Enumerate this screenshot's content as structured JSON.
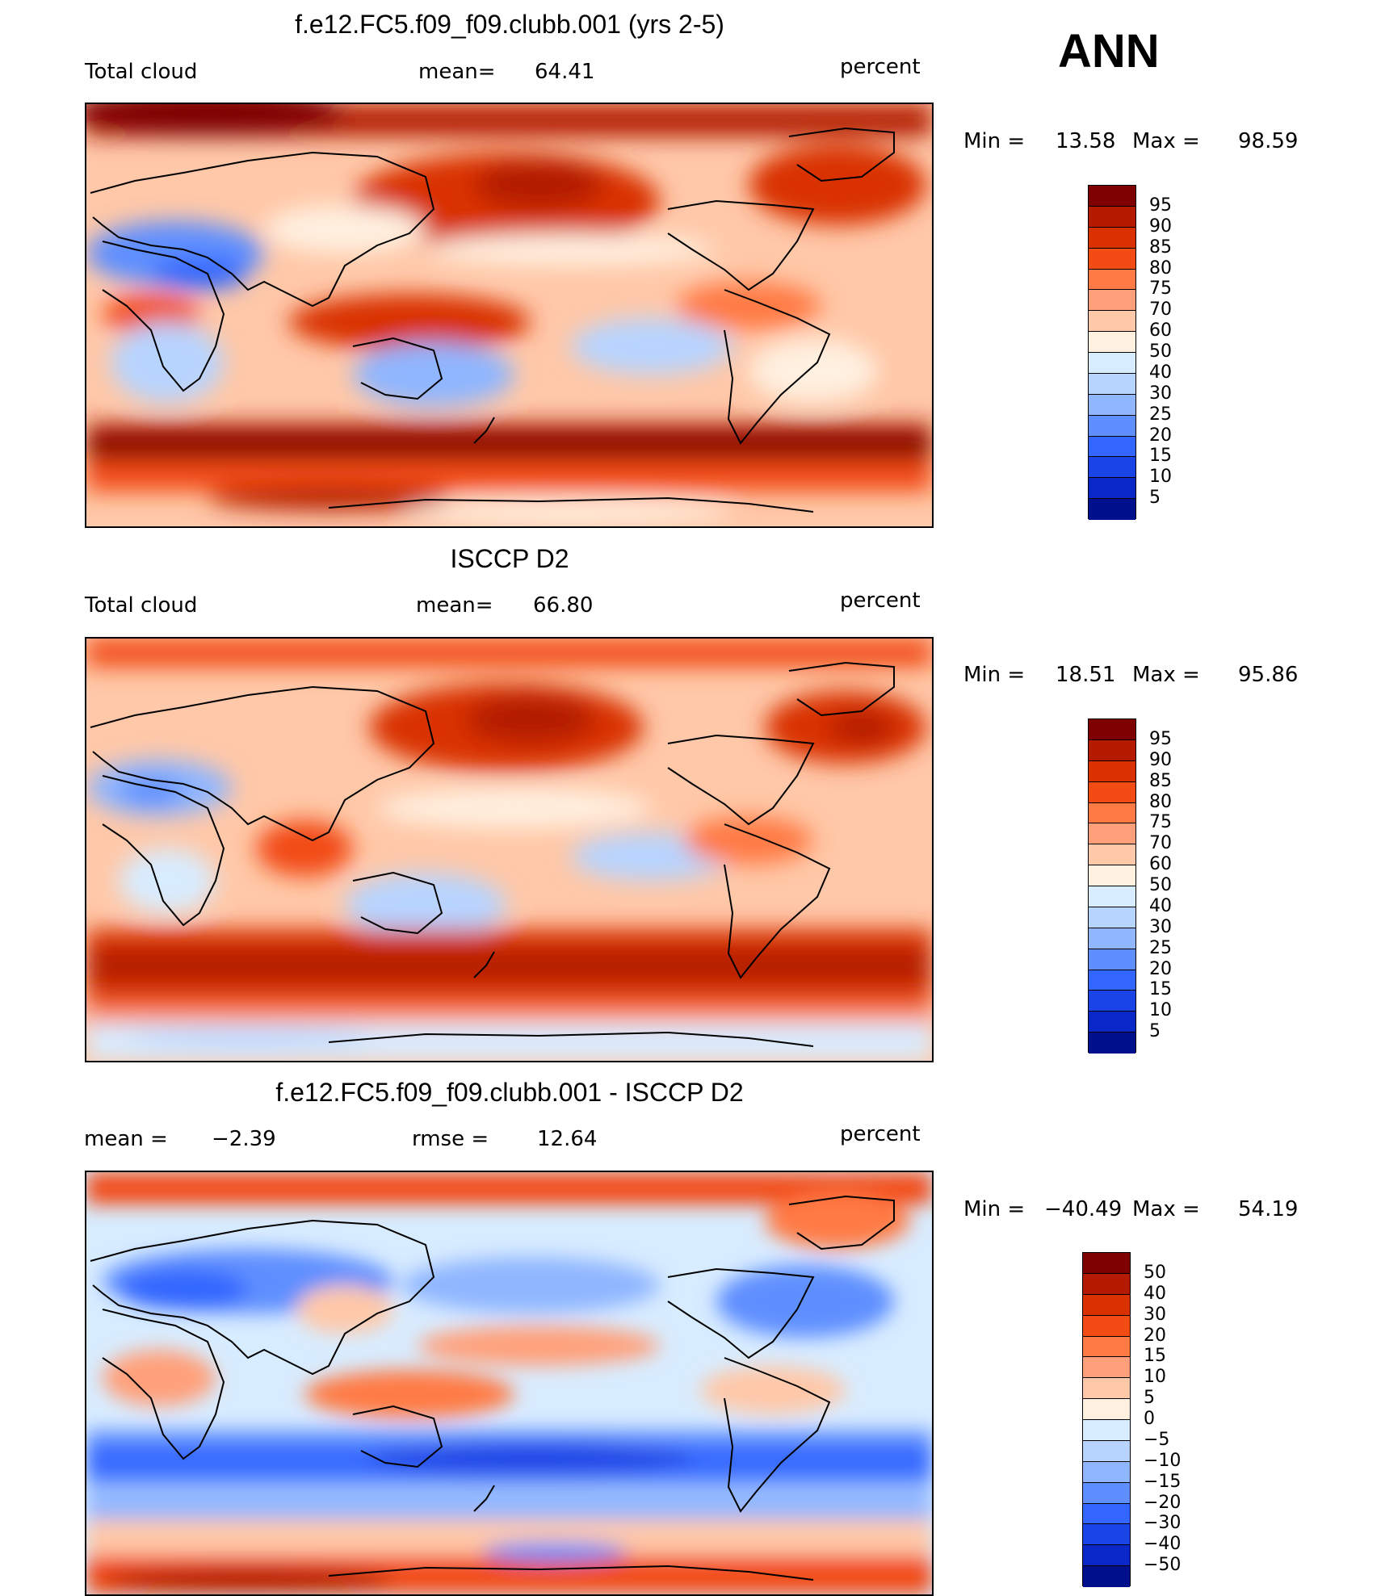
{
  "season": "ANN",
  "chart_data": [
    {
      "type": "heatmap",
      "title": "f.e12.FC5.f09_f09.clubb.001 (yrs 2-5)",
      "left_label": "Total cloud",
      "mean_label": "mean=",
      "mean_value": "64.41",
      "units": "percent",
      "min_label": "Min =",
      "min_value": "13.58",
      "max_label": "Max =",
      "max_value": "98.59",
      "colorbar": {
        "ticks": [
          "95",
          "90",
          "85",
          "80",
          "75",
          "70",
          "60",
          "50",
          "40",
          "30",
          "25",
          "20",
          "15",
          "10",
          "5"
        ],
        "colors": [
          "#7f0000",
          "#b31a00",
          "#d93200",
          "#f24c14",
          "#ff7a45",
          "#ffa07a",
          "#ffc8a8",
          "#fff0e0",
          "#d8ecff",
          "#b7d4ff",
          "#8fb6ff",
          "#5f8fff",
          "#3366ff",
          "#1a44e6",
          "#0a28c8",
          "#000f8c"
        ]
      }
    },
    {
      "type": "heatmap",
      "title": "ISCCP D2",
      "left_label": "Total cloud",
      "mean_label": "mean=",
      "mean_value": "66.80",
      "units": "percent",
      "min_label": "Min =",
      "min_value": "18.51",
      "max_label": "Max =",
      "max_value": "95.86",
      "colorbar": {
        "ticks": [
          "95",
          "90",
          "85",
          "80",
          "75",
          "70",
          "60",
          "50",
          "40",
          "30",
          "25",
          "20",
          "15",
          "10",
          "5"
        ],
        "colors": [
          "#7f0000",
          "#b31a00",
          "#d93200",
          "#f24c14",
          "#ff7a45",
          "#ffa07a",
          "#ffc8a8",
          "#fff0e0",
          "#d8ecff",
          "#b7d4ff",
          "#8fb6ff",
          "#5f8fff",
          "#3366ff",
          "#1a44e6",
          "#0a28c8",
          "#000f8c"
        ]
      }
    },
    {
      "type": "heatmap",
      "title": "f.e12.FC5.f09_f09.clubb.001 - ISCCP D2",
      "mean_label": "mean =",
      "mean_value": "−2.39",
      "rmse_label": "rmse =",
      "rmse_value": "12.64",
      "units": "percent",
      "min_label": "Min =",
      "min_value": "−40.49",
      "max_label": "Max =",
      "max_value": "54.19",
      "colorbar": {
        "ticks": [
          "50",
          "40",
          "30",
          "20",
          "15",
          "10",
          "5",
          "0",
          "−5",
          "−10",
          "−15",
          "−20",
          "−30",
          "−40",
          "−50"
        ],
        "colors": [
          "#7f0000",
          "#b31a00",
          "#d93200",
          "#f24c14",
          "#ff7a45",
          "#ffa07a",
          "#ffc8a8",
          "#fff0e0",
          "#d8ecff",
          "#b7d4ff",
          "#8fb6ff",
          "#5f8fff",
          "#3366ff",
          "#1a44e6",
          "#0a28c8",
          "#000f8c"
        ]
      }
    }
  ]
}
